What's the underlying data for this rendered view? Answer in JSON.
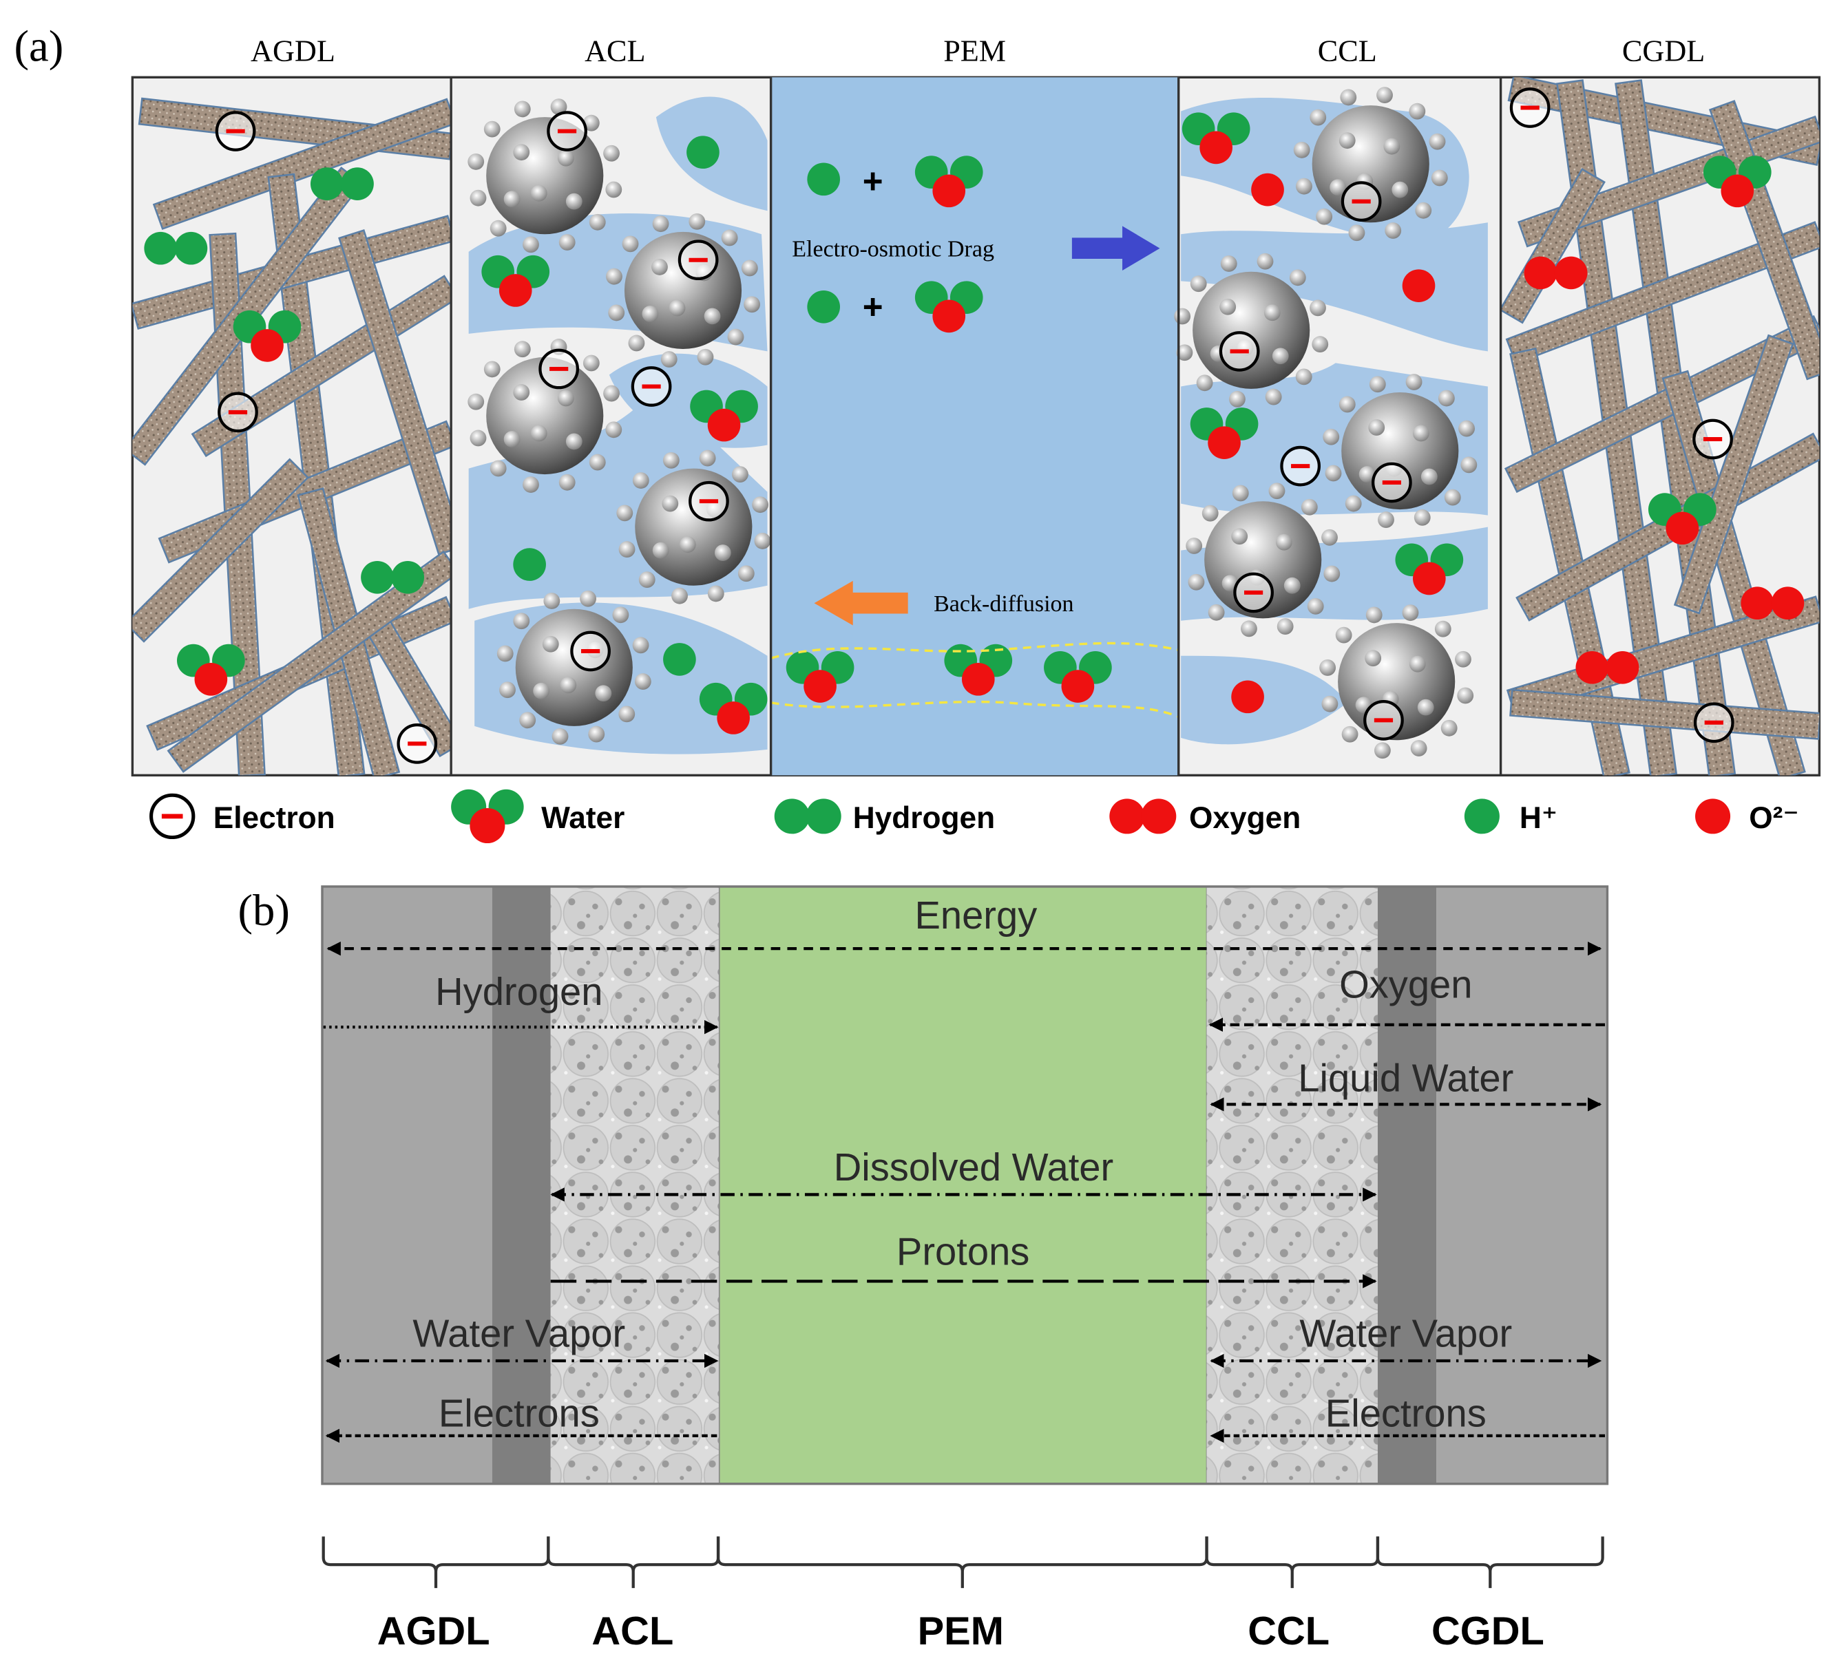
{
  "panel_a": {
    "label": "(a)",
    "layers": [
      "AGDL",
      "ACL",
      "PEM",
      "CCL",
      "CGDL"
    ],
    "drag": "Electro-osmotic Drag",
    "back_diffusion": "Back-diffusion",
    "plus": "+",
    "legend": [
      "Electron",
      "Water",
      "Hydrogen",
      "Oxygen",
      "H⁺",
      "O²⁻"
    ]
  },
  "panel_b": {
    "label": "(b)",
    "fluxes": {
      "energy": "Energy",
      "hydrogen": "Hydrogen",
      "oxygen": "Oxygen",
      "liquid_water": "Liquid Water",
      "dissolved_water": "Dissolved Water",
      "protons": "Protons",
      "water_vapor": "Water Vapor",
      "electrons": "Electrons"
    },
    "layers": [
      "AGDL",
      "ACL",
      "PEM",
      "CCL",
      "CGDL"
    ]
  }
}
